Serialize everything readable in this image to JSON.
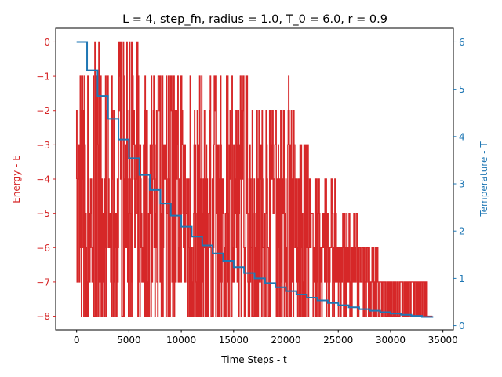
{
  "chart_data": {
    "type": "line",
    "title": "L = 4, step_fn, radius = 1.0, T_0 = 6.0, r = 0.9",
    "xlabel": "Time Steps - t",
    "ylabel_left": "Energy - E",
    "ylabel_right": "Temperature - T",
    "xlim": [
      -2000,
      36000
    ],
    "ylim_left": [
      -8.4,
      0.4
    ],
    "ylim_right": [
      -0.09,
      6.29
    ],
    "x_ticks": [
      0,
      5000,
      10000,
      15000,
      20000,
      25000,
      30000,
      35000
    ],
    "y_ticks_left": [
      0,
      -1,
      -2,
      -3,
      -4,
      -5,
      -6,
      -7,
      -8
    ],
    "y_ticks_right": [
      0,
      1,
      2,
      3,
      4,
      5,
      6
    ],
    "grid": false,
    "colors": {
      "energy": "#d62728",
      "temperature": "#1f77b4",
      "axes": "#000000"
    },
    "series": [
      {
        "name": "",
        "axis": "left",
        "kind": "energy-trace",
        "x_range": [
          0,
          34000
        ],
        "value_range": [
          -8,
          0
        ],
        "minimum_envelope": [
          [
            0,
            -8
          ],
          [
            30000,
            -8
          ],
          [
            31000,
            -8
          ],
          [
            33000,
            -8
          ],
          [
            34000,
            -8
          ]
        ],
        "maximum_envelope": [
          [
            0,
            -2
          ],
          [
            500,
            0
          ],
          [
            2000,
            0
          ],
          [
            3000,
            -1
          ],
          [
            4800,
            0
          ],
          [
            7000,
            -1
          ],
          [
            10000,
            -1
          ],
          [
            13000,
            -1
          ],
          [
            15600,
            -1
          ],
          [
            17000,
            -2
          ],
          [
            19000,
            -2
          ],
          [
            20600,
            -1
          ],
          [
            21000,
            -3
          ],
          [
            23500,
            -4
          ],
          [
            26000,
            -5
          ],
          [
            28000,
            -6
          ],
          [
            29500,
            -7
          ],
          [
            31500,
            -7
          ],
          [
            33000,
            -7
          ],
          [
            34000,
            -8
          ]
        ]
      },
      {
        "name": "",
        "axis": "right",
        "kind": "step",
        "x": [
          0,
          1000,
          2000,
          3000,
          4000,
          5000,
          6000,
          7000,
          8000,
          9000,
          10000,
          11000,
          12000,
          13000,
          14000,
          15000,
          16000,
          17000,
          18000,
          19000,
          20000,
          21000,
          22000,
          23000,
          24000,
          25000,
          26000,
          27000,
          28000,
          29000,
          30000,
          31000,
          32000,
          33000,
          34000
        ],
        "values": [
          6.0,
          5.4,
          4.86,
          4.374,
          3.937,
          3.543,
          3.189,
          2.87,
          2.583,
          2.325,
          2.092,
          1.883,
          1.695,
          1.525,
          1.373,
          1.236,
          1.112,
          1.001,
          0.901,
          0.811,
          0.73,
          0.657,
          0.591,
          0.532,
          0.479,
          0.431,
          0.388,
          0.349,
          0.314,
          0.283,
          0.254,
          0.229,
          0.206,
          0.185,
          0.167
        ]
      }
    ]
  }
}
